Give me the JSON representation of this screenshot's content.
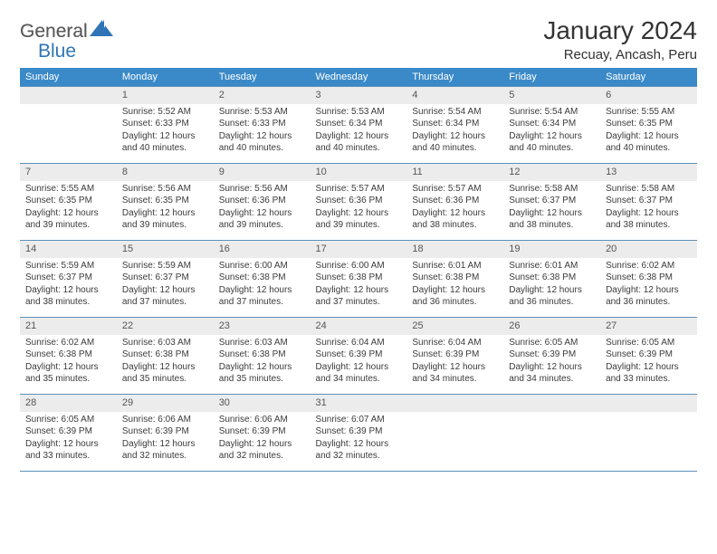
{
  "brand": {
    "text1": "General",
    "text2": "Blue",
    "iconColor": "#2f75b5"
  },
  "title": "January 2024",
  "location": "Recuay, Ancash, Peru",
  "colors": {
    "headerBg": "#3a8ac9",
    "rowBorder": "#5b90bb",
    "dayNumBg": "#ececec"
  },
  "weekdays": [
    "Sunday",
    "Monday",
    "Tuesday",
    "Wednesday",
    "Thursday",
    "Friday",
    "Saturday"
  ],
  "firstWeekday": 1,
  "daysInMonth": 31,
  "days": {
    "1": {
      "sunrise": "5:52 AM",
      "sunset": "6:33 PM",
      "daylight": "12 hours and 40 minutes."
    },
    "2": {
      "sunrise": "5:53 AM",
      "sunset": "6:33 PM",
      "daylight": "12 hours and 40 minutes."
    },
    "3": {
      "sunrise": "5:53 AM",
      "sunset": "6:34 PM",
      "daylight": "12 hours and 40 minutes."
    },
    "4": {
      "sunrise": "5:54 AM",
      "sunset": "6:34 PM",
      "daylight": "12 hours and 40 minutes."
    },
    "5": {
      "sunrise": "5:54 AM",
      "sunset": "6:34 PM",
      "daylight": "12 hours and 40 minutes."
    },
    "6": {
      "sunrise": "5:55 AM",
      "sunset": "6:35 PM",
      "daylight": "12 hours and 40 minutes."
    },
    "7": {
      "sunrise": "5:55 AM",
      "sunset": "6:35 PM",
      "daylight": "12 hours and 39 minutes."
    },
    "8": {
      "sunrise": "5:56 AM",
      "sunset": "6:35 PM",
      "daylight": "12 hours and 39 minutes."
    },
    "9": {
      "sunrise": "5:56 AM",
      "sunset": "6:36 PM",
      "daylight": "12 hours and 39 minutes."
    },
    "10": {
      "sunrise": "5:57 AM",
      "sunset": "6:36 PM",
      "daylight": "12 hours and 39 minutes."
    },
    "11": {
      "sunrise": "5:57 AM",
      "sunset": "6:36 PM",
      "daylight": "12 hours and 38 minutes."
    },
    "12": {
      "sunrise": "5:58 AM",
      "sunset": "6:37 PM",
      "daylight": "12 hours and 38 minutes."
    },
    "13": {
      "sunrise": "5:58 AM",
      "sunset": "6:37 PM",
      "daylight": "12 hours and 38 minutes."
    },
    "14": {
      "sunrise": "5:59 AM",
      "sunset": "6:37 PM",
      "daylight": "12 hours and 38 minutes."
    },
    "15": {
      "sunrise": "5:59 AM",
      "sunset": "6:37 PM",
      "daylight": "12 hours and 37 minutes."
    },
    "16": {
      "sunrise": "6:00 AM",
      "sunset": "6:38 PM",
      "daylight": "12 hours and 37 minutes."
    },
    "17": {
      "sunrise": "6:00 AM",
      "sunset": "6:38 PM",
      "daylight": "12 hours and 37 minutes."
    },
    "18": {
      "sunrise": "6:01 AM",
      "sunset": "6:38 PM",
      "daylight": "12 hours and 36 minutes."
    },
    "19": {
      "sunrise": "6:01 AM",
      "sunset": "6:38 PM",
      "daylight": "12 hours and 36 minutes."
    },
    "20": {
      "sunrise": "6:02 AM",
      "sunset": "6:38 PM",
      "daylight": "12 hours and 36 minutes."
    },
    "21": {
      "sunrise": "6:02 AM",
      "sunset": "6:38 PM",
      "daylight": "12 hours and 35 minutes."
    },
    "22": {
      "sunrise": "6:03 AM",
      "sunset": "6:38 PM",
      "daylight": "12 hours and 35 minutes."
    },
    "23": {
      "sunrise": "6:03 AM",
      "sunset": "6:38 PM",
      "daylight": "12 hours and 35 minutes."
    },
    "24": {
      "sunrise": "6:04 AM",
      "sunset": "6:39 PM",
      "daylight": "12 hours and 34 minutes."
    },
    "25": {
      "sunrise": "6:04 AM",
      "sunset": "6:39 PM",
      "daylight": "12 hours and 34 minutes."
    },
    "26": {
      "sunrise": "6:05 AM",
      "sunset": "6:39 PM",
      "daylight": "12 hours and 34 minutes."
    },
    "27": {
      "sunrise": "6:05 AM",
      "sunset": "6:39 PM",
      "daylight": "12 hours and 33 minutes."
    },
    "28": {
      "sunrise": "6:05 AM",
      "sunset": "6:39 PM",
      "daylight": "12 hours and 33 minutes."
    },
    "29": {
      "sunrise": "6:06 AM",
      "sunset": "6:39 PM",
      "daylight": "12 hours and 32 minutes."
    },
    "30": {
      "sunrise": "6:06 AM",
      "sunset": "6:39 PM",
      "daylight": "12 hours and 32 minutes."
    },
    "31": {
      "sunrise": "6:07 AM",
      "sunset": "6:39 PM",
      "daylight": "12 hours and 32 minutes."
    }
  },
  "labels": {
    "sunrise": "Sunrise:",
    "sunset": "Sunset:",
    "daylight": "Daylight:"
  }
}
